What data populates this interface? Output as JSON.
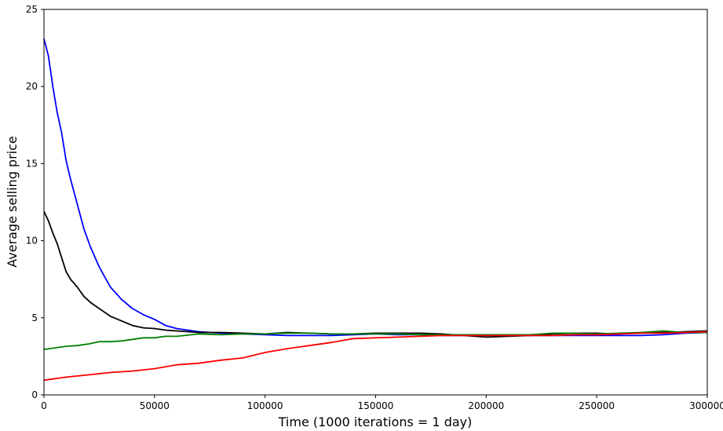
{
  "chart_data": {
    "type": "line",
    "title": "",
    "xlabel": "Time (1000 iterations = 1 day)",
    "ylabel": "Average selling price",
    "xlim": [
      0,
      300000
    ],
    "ylim": [
      0,
      25
    ],
    "xticks": [
      0,
      50000,
      100000,
      150000,
      200000,
      250000,
      300000
    ],
    "xtick_labels": [
      "0",
      "50000",
      "100000",
      "150000",
      "200000",
      "250000",
      "300000"
    ],
    "yticks": [
      0,
      5,
      10,
      15,
      20,
      25
    ],
    "ytick_labels": [
      "0",
      "5",
      "10",
      "15",
      "20",
      "25"
    ],
    "grid": false,
    "legend": "none",
    "series": [
      {
        "color": "#0000ff",
        "x": [
          0,
          2000,
          4000,
          6000,
          8000,
          10000,
          12000,
          15000,
          18000,
          21000,
          25000,
          30000,
          35000,
          40000,
          45000,
          50000,
          55000,
          60000,
          70000,
          80000,
          90000,
          100000,
          110000,
          120000,
          130000,
          140000,
          150000,
          160000,
          170000,
          180000,
          190000,
          200000,
          210000,
          220000,
          230000,
          240000,
          250000,
          260000,
          270000,
          280000,
          290000,
          300000
        ],
        "y": [
          23.1,
          22.0,
          20.0,
          18.3,
          17.0,
          15.2,
          14.0,
          12.4,
          10.8,
          9.6,
          8.3,
          7.0,
          6.2,
          5.6,
          5.2,
          4.9,
          4.5,
          4.3,
          4.1,
          4.0,
          3.95,
          3.9,
          3.85,
          3.85,
          3.85,
          3.9,
          3.95,
          3.9,
          3.9,
          3.85,
          3.85,
          3.9,
          3.85,
          3.85,
          3.85,
          3.85,
          3.85,
          3.85,
          3.85,
          3.9,
          4.0,
          4.05
        ]
      },
      {
        "color": "#000000",
        "x": [
          0,
          2000,
          4000,
          6000,
          8000,
          10000,
          12000,
          15000,
          18000,
          21000,
          25000,
          30000,
          35000,
          40000,
          45000,
          50000,
          55000,
          60000,
          70000,
          80000,
          90000,
          100000,
          110000,
          120000,
          130000,
          140000,
          150000,
          160000,
          170000,
          180000,
          190000,
          200000,
          210000,
          220000,
          230000,
          240000,
          250000,
          260000,
          270000,
          280000,
          290000,
          300000
        ],
        "y": [
          11.9,
          11.3,
          10.5,
          9.8,
          8.9,
          8.0,
          7.5,
          7.0,
          6.4,
          6.0,
          5.6,
          5.1,
          4.8,
          4.5,
          4.35,
          4.3,
          4.2,
          4.15,
          4.05,
          4.05,
          4.0,
          3.95,
          4.05,
          4.0,
          3.95,
          3.95,
          4.0,
          4.0,
          4.0,
          3.95,
          3.85,
          3.75,
          3.8,
          3.85,
          3.95,
          4.0,
          4.0,
          3.95,
          4.0,
          4.05,
          4.1,
          4.15
        ]
      },
      {
        "color": "#008000",
        "x": [
          0,
          5000,
          10000,
          15000,
          20000,
          25000,
          30000,
          35000,
          40000,
          45000,
          50000,
          55000,
          60000,
          70000,
          80000,
          90000,
          100000,
          110000,
          120000,
          130000,
          140000,
          150000,
          160000,
          170000,
          180000,
          190000,
          200000,
          210000,
          220000,
          230000,
          240000,
          250000,
          260000,
          270000,
          280000,
          290000,
          300000
        ],
        "y": [
          2.95,
          3.05,
          3.15,
          3.2,
          3.3,
          3.45,
          3.45,
          3.5,
          3.6,
          3.7,
          3.7,
          3.8,
          3.8,
          3.95,
          3.9,
          3.95,
          3.95,
          4.0,
          4.0,
          3.95,
          3.95,
          3.95,
          3.95,
          3.9,
          3.9,
          3.9,
          3.9,
          3.9,
          3.9,
          4.0,
          4.0,
          3.95,
          4.0,
          4.05,
          4.15,
          4.05,
          4.05
        ]
      },
      {
        "color": "#ff0000",
        "x": [
          0,
          10000,
          20000,
          30000,
          40000,
          50000,
          60000,
          70000,
          80000,
          90000,
          100000,
          110000,
          120000,
          130000,
          140000,
          150000,
          160000,
          170000,
          180000,
          190000,
          200000,
          210000,
          220000,
          230000,
          240000,
          250000,
          260000,
          270000,
          280000,
          290000,
          300000
        ],
        "y": [
          0.95,
          1.15,
          1.3,
          1.45,
          1.55,
          1.7,
          1.95,
          2.05,
          2.25,
          2.4,
          2.75,
          3.0,
          3.2,
          3.4,
          3.65,
          3.7,
          3.75,
          3.8,
          3.85,
          3.85,
          3.85,
          3.85,
          3.85,
          3.85,
          3.9,
          3.9,
          3.95,
          4.0,
          4.0,
          4.05,
          4.1
        ]
      }
    ]
  }
}
